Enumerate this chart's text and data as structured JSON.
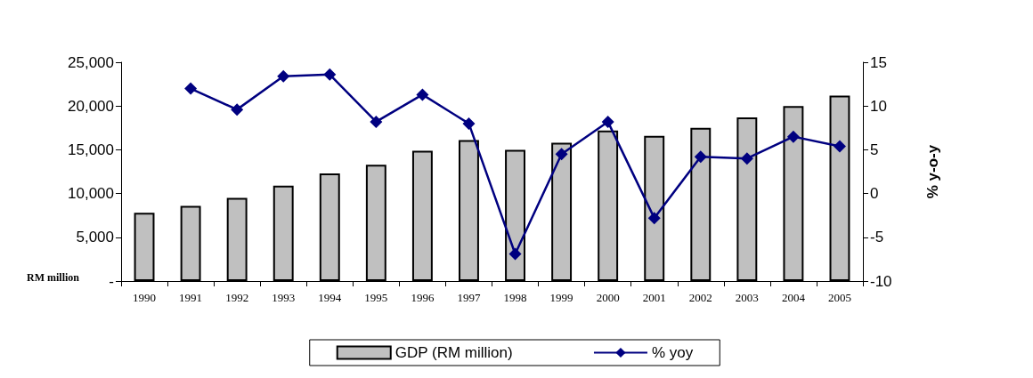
{
  "chart_data": {
    "type": "bar",
    "ylabel": "RM million",
    "y2label": "% y-o-y",
    "categories": [
      "1990",
      "1991",
      "1992",
      "1993",
      "1994",
      "1995",
      "1996",
      "1997",
      "1998",
      "1999",
      "2000",
      "2001",
      "2002",
      "2003",
      "2004",
      "2005"
    ],
    "series": [
      {
        "name": "GDP (RM million)",
        "color": "#c0c0c0",
        "values": [
          7800,
          8600,
          9500,
          10900,
          12300,
          13300,
          14900,
          16100,
          15000,
          15800,
          17200,
          16600,
          17500,
          18700,
          20000,
          21200
        ]
      },
      {
        "name": "% yoy",
        "type": "line",
        "axis": "y2",
        "color": "#000080",
        "marker": "diamond",
        "values": [
          null,
          12.0,
          9.6,
          13.4,
          13.6,
          8.2,
          11.3,
          8.0,
          -6.9,
          4.5,
          8.2,
          -2.8,
          4.2,
          4.0,
          6.5,
          5.4
        ]
      }
    ],
    "ylim": [
      0,
      25000
    ],
    "yticks": [
      {
        "value": 0,
        "label": "-"
      },
      {
        "value": 5000,
        "label": "5,000"
      },
      {
        "value": 10000,
        "label": "10,000"
      },
      {
        "value": 15000,
        "label": "15,000"
      },
      {
        "value": 20000,
        "label": "20,000"
      },
      {
        "value": 25000,
        "label": "25,000"
      }
    ],
    "y2lim": [
      -10,
      15
    ],
    "y2ticks": [
      -10,
      -5,
      0,
      5,
      10,
      15
    ],
    "grid": false,
    "legend": "bottom"
  }
}
